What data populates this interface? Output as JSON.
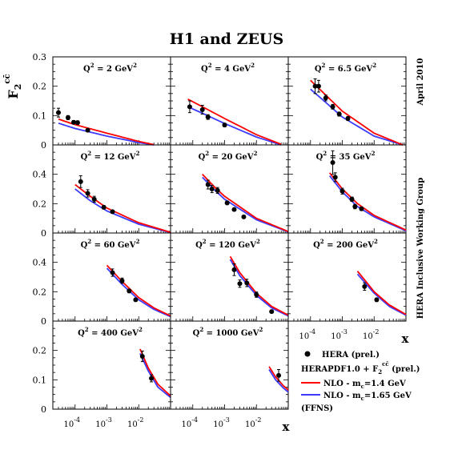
{
  "title": "H1 and ZEUS",
  "ylabel": {
    "main": "F",
    "sub": "2",
    "sup": "cc̄"
  },
  "xlabel": "x",
  "side_text_top": "April 2010",
  "side_text_bottom": "HERA Inclusive Working Group",
  "colors": {
    "data": "#000000",
    "nlo_14": "#ff0000",
    "nlo_165": "#3b3bff",
    "frame": "#000000"
  },
  "legend": {
    "data_label": "HERA (prel.)",
    "pdf_label": "HERAPDF1.0 + F",
    "pdf_sub": "2",
    "pdf_sup": "cc̄",
    "pdf_suffix": " (prel.)",
    "line_14_prefix": "NLO  -  m",
    "line_14_sub": "c",
    "line_14_suffix": "=1.4 GeV",
    "line_165_prefix": "NLO  -  m",
    "line_165_sub": "c",
    "line_165_suffix": "=1.65 GeV",
    "scheme": "(FFNS)"
  },
  "chart_data": {
    "type": "scatter",
    "title": "H1 and ZEUS",
    "xlabel": "x",
    "ylabel": "F2 cc̄",
    "x_scale": "log",
    "xlim": [
      2e-05,
      0.1
    ],
    "x_ticks": [
      {
        "value": 0.0001,
        "label": "10",
        "exp": "-4"
      },
      {
        "value": 0.001,
        "label": "10",
        "exp": "-3"
      },
      {
        "value": 0.01,
        "label": "10",
        "exp": "-2"
      }
    ],
    "panels": [
      {
        "q2": "Q",
        "q2_sup": "2",
        "q2_text": " = 2 GeV",
        "q2_unit_sup": "2",
        "ylim": [
          0,
          0.3
        ],
        "yticks": [
          0,
          0.1,
          0.2,
          0.3
        ],
        "points": [
          {
            "x": 3e-05,
            "y": 0.11,
            "err": 0.015
          },
          {
            "x": 6e-05,
            "y": 0.093,
            "err": 0.007
          },
          {
            "x": 9e-05,
            "y": 0.077,
            "err": 0.006
          },
          {
            "x": 0.00012,
            "y": 0.076,
            "err": 0.006
          },
          {
            "x": 0.00025,
            "y": 0.05,
            "err": 0.004
          }
        ],
        "curve_14": [
          [
            3e-05,
            0.088
          ],
          [
            0.0001,
            0.069
          ],
          [
            0.001,
            0.04
          ],
          [
            0.01,
            0.012
          ],
          [
            0.03,
            0.001
          ]
        ],
        "curve_165": [
          [
            3e-05,
            0.074
          ],
          [
            0.0001,
            0.056
          ],
          [
            0.001,
            0.03
          ],
          [
            0.01,
            0.008
          ],
          [
            0.03,
            0.0
          ]
        ]
      },
      {
        "q2": "Q",
        "q2_sup": "2",
        "q2_text": " = 4 GeV",
        "q2_unit_sup": "2",
        "ylim": [
          0,
          0.3
        ],
        "yticks": [],
        "points": [
          {
            "x": 8e-05,
            "y": 0.13,
            "err": 0.02
          },
          {
            "x": 0.0002,
            "y": 0.12,
            "err": 0.015
          },
          {
            "x": 0.0003,
            "y": 0.095,
            "err": 0.008
          },
          {
            "x": 0.001,
            "y": 0.068,
            "err": 0.006
          }
        ],
        "curve_14": [
          [
            7e-05,
            0.156
          ],
          [
            0.0002,
            0.13
          ],
          [
            0.001,
            0.09
          ],
          [
            0.01,
            0.035
          ],
          [
            0.06,
            0.002
          ]
        ],
        "curve_165": [
          [
            7e-05,
            0.13
          ],
          [
            0.0002,
            0.108
          ],
          [
            0.001,
            0.073
          ],
          [
            0.01,
            0.027
          ],
          [
            0.06,
            0.0
          ]
        ]
      },
      {
        "q2": "Q",
        "q2_sup": "2",
        "q2_text": " = 6.5 GeV",
        "q2_unit_sup": "2",
        "ylim": [
          0,
          0.3
        ],
        "yticks": [],
        "points": [
          {
            "x": 0.00014,
            "y": 0.2,
            "err": 0.025
          },
          {
            "x": 0.00018,
            "y": 0.2,
            "err": 0.02
          },
          {
            "x": 0.0003,
            "y": 0.16,
            "err": 0.01
          },
          {
            "x": 0.0005,
            "y": 0.13,
            "err": 0.008
          },
          {
            "x": 0.0008,
            "y": 0.105,
            "err": 0.007
          },
          {
            "x": 0.0015,
            "y": 0.09,
            "err": 0.007
          }
        ],
        "curve_14": [
          [
            0.0001,
            0.22
          ],
          [
            0.0003,
            0.17
          ],
          [
            0.001,
            0.115
          ],
          [
            0.01,
            0.04
          ],
          [
            0.08,
            0.0
          ]
        ],
        "curve_165": [
          [
            0.0001,
            0.19
          ],
          [
            0.0003,
            0.145
          ],
          [
            0.001,
            0.095
          ],
          [
            0.01,
            0.03
          ],
          [
            0.08,
            0.0
          ]
        ]
      },
      {
        "q2": "Q",
        "q2_sup": "2",
        "q2_text": " = 12 GeV",
        "q2_unit_sup": "2",
        "ylim": [
          0,
          0.6
        ],
        "yticks": [
          0,
          0.2,
          0.4
        ],
        "points": [
          {
            "x": 0.00015,
            "y": 0.35,
            "err": 0.04
          },
          {
            "x": 0.00025,
            "y": 0.27,
            "err": 0.025
          },
          {
            "x": 0.0004,
            "y": 0.23,
            "err": 0.02
          },
          {
            "x": 0.0008,
            "y": 0.175,
            "err": 0.012
          },
          {
            "x": 0.0015,
            "y": 0.145,
            "err": 0.01
          }
        ],
        "curve_14": [
          [
            0.0001,
            0.33
          ],
          [
            0.0003,
            0.25
          ],
          [
            0.001,
            0.17
          ],
          [
            0.01,
            0.07
          ],
          [
            0.1,
            0.005
          ]
        ],
        "curve_165": [
          [
            0.0001,
            0.3
          ],
          [
            0.0003,
            0.22
          ],
          [
            0.001,
            0.15
          ],
          [
            0.01,
            0.06
          ],
          [
            0.1,
            0.003
          ]
        ]
      },
      {
        "q2": "Q",
        "q2_sup": "2",
        "q2_text": " = 20 GeV",
        "q2_unit_sup": "2",
        "ylim": [
          0,
          0.6
        ],
        "yticks": [],
        "points": [
          {
            "x": 0.0003,
            "y": 0.33,
            "err": 0.03
          },
          {
            "x": 0.0004,
            "y": 0.3,
            "err": 0.025
          },
          {
            "x": 0.0006,
            "y": 0.29,
            "err": 0.02
          },
          {
            "x": 0.0012,
            "y": 0.205,
            "err": 0.012
          },
          {
            "x": 0.002,
            "y": 0.16,
            "err": 0.01
          },
          {
            "x": 0.004,
            "y": 0.11,
            "err": 0.008
          }
        ],
        "curve_14": [
          [
            0.0002,
            0.4
          ],
          [
            0.0005,
            0.31
          ],
          [
            0.001,
            0.25
          ],
          [
            0.01,
            0.1
          ],
          [
            0.1,
            0.01
          ]
        ],
        "curve_165": [
          [
            0.0002,
            0.38
          ],
          [
            0.0005,
            0.29
          ],
          [
            0.001,
            0.23
          ],
          [
            0.01,
            0.09
          ],
          [
            0.1,
            0.008
          ]
        ]
      },
      {
        "q2": "Q",
        "q2_sup": "2",
        "q2_text": " = 35 GeV",
        "q2_unit_sup": "2",
        "ylim": [
          0,
          0.6
        ],
        "yticks": [],
        "points": [
          {
            "x": 0.0005,
            "y": 0.48,
            "err": 0.08
          },
          {
            "x": 0.0006,
            "y": 0.38,
            "err": 0.03
          },
          {
            "x": 0.001,
            "y": 0.285,
            "err": 0.02
          },
          {
            "x": 0.002,
            "y": 0.23,
            "err": 0.015
          },
          {
            "x": 0.0025,
            "y": 0.18,
            "err": 0.015
          },
          {
            "x": 0.004,
            "y": 0.165,
            "err": 0.012
          }
        ],
        "curve_14": [
          [
            0.0004,
            0.41
          ],
          [
            0.001,
            0.3
          ],
          [
            0.003,
            0.2
          ],
          [
            0.01,
            0.12
          ],
          [
            0.1,
            0.02
          ]
        ],
        "curve_165": [
          [
            0.0004,
            0.39
          ],
          [
            0.001,
            0.28
          ],
          [
            0.003,
            0.18
          ],
          [
            0.01,
            0.11
          ],
          [
            0.1,
            0.015
          ]
        ]
      },
      {
        "q2": "Q",
        "q2_sup": "2",
        "q2_text": " = 60 GeV",
        "q2_unit_sup": "2",
        "ylim": [
          0,
          0.6
        ],
        "yticks": [
          0,
          0.2,
          0.4
        ],
        "points": [
          {
            "x": 0.0015,
            "y": 0.33,
            "err": 0.025
          },
          {
            "x": 0.003,
            "y": 0.275,
            "err": 0.018
          },
          {
            "x": 0.005,
            "y": 0.205,
            "err": 0.012
          },
          {
            "x": 0.008,
            "y": 0.145,
            "err": 0.01
          }
        ],
        "curve_14": [
          [
            0.001,
            0.38
          ],
          [
            0.003,
            0.27
          ],
          [
            0.01,
            0.16
          ],
          [
            0.03,
            0.09
          ],
          [
            0.1,
            0.035
          ]
        ],
        "curve_165": [
          [
            0.001,
            0.36
          ],
          [
            0.003,
            0.25
          ],
          [
            0.01,
            0.145
          ],
          [
            0.03,
            0.08
          ],
          [
            0.1,
            0.03
          ]
        ]
      },
      {
        "q2": "Q",
        "q2_sup": "2",
        "q2_text": " = 120 GeV",
        "q2_unit_sup": "2",
        "ylim": [
          0,
          0.6
        ],
        "yticks": [],
        "points": [
          {
            "x": 0.002,
            "y": 0.35,
            "err": 0.04
          },
          {
            "x": 0.003,
            "y": 0.255,
            "err": 0.025
          },
          {
            "x": 0.005,
            "y": 0.26,
            "err": 0.025
          },
          {
            "x": 0.01,
            "y": 0.18,
            "err": 0.018
          },
          {
            "x": 0.03,
            "y": 0.065,
            "err": 0.01
          }
        ],
        "curve_14": [
          [
            0.0015,
            0.44
          ],
          [
            0.003,
            0.33
          ],
          [
            0.01,
            0.19
          ],
          [
            0.03,
            0.1
          ],
          [
            0.1,
            0.04
          ]
        ],
        "curve_165": [
          [
            0.0015,
            0.42
          ],
          [
            0.003,
            0.31
          ],
          [
            0.01,
            0.175
          ],
          [
            0.03,
            0.09
          ],
          [
            0.1,
            0.035
          ]
        ]
      },
      {
        "q2": "Q",
        "q2_sup": "2",
        "q2_text": " = 200 GeV",
        "q2_unit_sup": "2",
        "ylim": [
          0,
          0.6
        ],
        "yticks": [],
        "points": [
          {
            "x": 0.005,
            "y": 0.235,
            "err": 0.025
          },
          {
            "x": 0.012,
            "y": 0.145,
            "err": 0.012
          }
        ],
        "curve_14": [
          [
            0.003,
            0.34
          ],
          [
            0.006,
            0.26
          ],
          [
            0.01,
            0.2
          ],
          [
            0.03,
            0.11
          ],
          [
            0.1,
            0.045
          ]
        ],
        "curve_165": [
          [
            0.003,
            0.32
          ],
          [
            0.006,
            0.245
          ],
          [
            0.01,
            0.19
          ],
          [
            0.03,
            0.1
          ],
          [
            0.1,
            0.04
          ]
        ]
      },
      {
        "q2": "Q",
        "q2_sup": "2",
        "q2_text": " = 400 GeV",
        "q2_unit_sup": "2",
        "ylim": [
          0,
          0.3
        ],
        "yticks": [
          0,
          0.1,
          0.2
        ],
        "points": [
          {
            "x": 0.013,
            "y": 0.18,
            "err": 0.018
          },
          {
            "x": 0.025,
            "y": 0.105,
            "err": 0.012
          }
        ],
        "curve_14": [
          [
            0.011,
            0.205
          ],
          [
            0.02,
            0.14
          ],
          [
            0.04,
            0.085
          ],
          [
            0.1,
            0.045
          ]
        ],
        "curve_165": [
          [
            0.011,
            0.19
          ],
          [
            0.02,
            0.13
          ],
          [
            0.04,
            0.075
          ],
          [
            0.1,
            0.04
          ]
        ]
      },
      {
        "q2": "Q",
        "q2_sup": "2",
        "q2_text": " = 1000 GeV",
        "q2_unit_sup": "2",
        "ylim": [
          0,
          0.3
        ],
        "yticks": [],
        "points": [
          {
            "x": 0.05,
            "y": 0.115,
            "err": 0.02
          }
        ],
        "curve_14": [
          [
            0.025,
            0.145
          ],
          [
            0.04,
            0.11
          ],
          [
            0.07,
            0.08
          ],
          [
            0.1,
            0.065
          ]
        ],
        "curve_165": [
          [
            0.025,
            0.135
          ],
          [
            0.04,
            0.1
          ],
          [
            0.07,
            0.072
          ],
          [
            0.1,
            0.058
          ]
        ]
      }
    ]
  }
}
